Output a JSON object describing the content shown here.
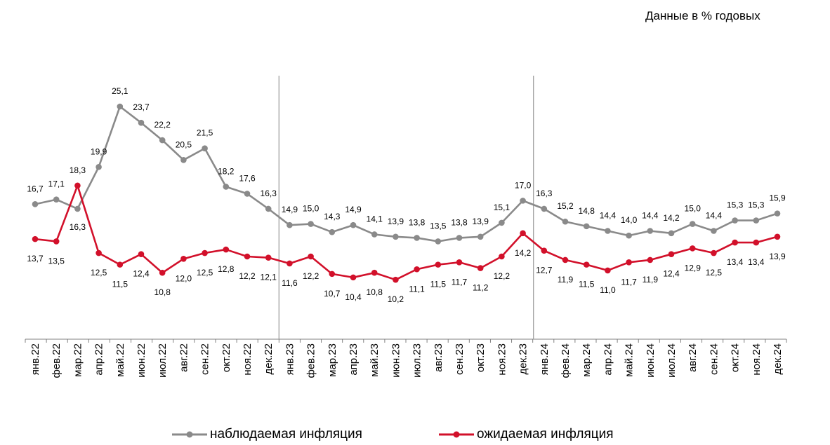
{
  "unit_note": "Данные в % годовых",
  "colors": {
    "observed": "#8a8a8a",
    "expected": "#d2102a",
    "axis": "#808080",
    "divider": "#a0a0a0"
  },
  "legend": [
    {
      "label": "наблюдаемая инфляция",
      "color": "#8a8a8a"
    },
    {
      "label": "ожидаемая инфляция",
      "color": "#d2102a"
    }
  ],
  "chart_data": {
    "type": "line",
    "categories": [
      "янв.22",
      "фев.22",
      "мар.22",
      "апр.22",
      "май.22",
      "июн.22",
      "июл.22",
      "авг.22",
      "сен.22",
      "окт.22",
      "ноя.22",
      "дек.22",
      "янв.23",
      "фев.23",
      "мар.23",
      "апр.23",
      "май.23",
      "июн.23",
      "июл.23",
      "авг.23",
      "сен.23",
      "окт.23",
      "ноя.23",
      "дек.23",
      "янв.24",
      "фев.24",
      "мар.24",
      "апр.24",
      "май.24",
      "июн.24",
      "июл.24",
      "авг.24",
      "сен.24",
      "окт.24",
      "ноя.24",
      "дек.24"
    ],
    "series": [
      {
        "name": "наблюдаемая инфляция",
        "values": [
          16.7,
          17.1,
          16.3,
          19.9,
          25.1,
          23.7,
          22.2,
          20.5,
          21.5,
          18.2,
          17.6,
          16.3,
          14.9,
          15.0,
          14.3,
          14.9,
          14.1,
          13.9,
          13.8,
          13.5,
          13.8,
          13.9,
          15.1,
          17.0,
          16.3,
          15.2,
          14.8,
          14.4,
          14.0,
          14.4,
          14.2,
          15.0,
          14.4,
          15.3,
          15.3,
          15.9
        ],
        "labels": [
          "16,7",
          "17,1",
          "16,3",
          "19,9",
          "25,1",
          "23,7",
          "22,2",
          "20,5",
          "21,5",
          "18,2",
          "17,6",
          "16,3",
          "14,9",
          "15,0",
          "14,3",
          "14,9",
          "14,1",
          "13,9",
          "13,8",
          "13,5",
          "13,8",
          "13,9",
          "15,1",
          "17,0",
          "16,3",
          "15,2",
          "14,8",
          "14,4",
          "14,0",
          "14,4",
          "14,2",
          "15,0",
          "14,4",
          "15,3",
          "15,3",
          "15,9"
        ]
      },
      {
        "name": "ожидаемая инфляция",
        "values": [
          13.7,
          13.5,
          18.3,
          12.5,
          11.5,
          12.4,
          10.8,
          12.0,
          12.5,
          12.8,
          12.2,
          12.1,
          11.6,
          12.2,
          10.7,
          10.4,
          10.8,
          10.2,
          11.1,
          11.5,
          11.7,
          11.2,
          12.2,
          14.2,
          12.7,
          11.9,
          11.5,
          11.0,
          11.7,
          11.9,
          12.4,
          12.9,
          12.5,
          13.4,
          13.4,
          13.9
        ],
        "labels": [
          "13,7",
          "13,5",
          "18,3",
          "12,5",
          "11,5",
          "12,4",
          "10,8",
          "12,0",
          "12,5",
          "12,8",
          "12,2",
          "12,1",
          "11,6",
          "12,2",
          "10,7",
          "10,4",
          "10,8",
          "10,2",
          "11,1",
          "11,5",
          "11,7",
          "11,2",
          "12,2",
          "14,2",
          "12,7",
          "11,9",
          "11,5",
          "11,0",
          "11,7",
          "11,9",
          "12,4",
          "12,9",
          "12,5",
          "13,4",
          "13,4",
          "13,9"
        ]
      }
    ],
    "year_dividers_after": [
      "дек.22",
      "дек.23"
    ],
    "grid": false,
    "legend_position": "bottom"
  }
}
